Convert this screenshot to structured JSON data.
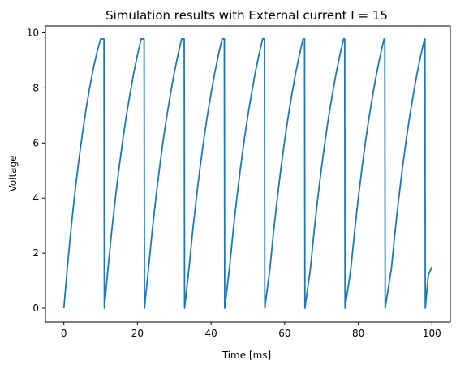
{
  "chart_data": {
    "type": "line",
    "title": "Simulation results with External current I = 15",
    "xlabel": "Time [ms]",
    "ylabel": "Voltage",
    "xlim": [
      -5,
      105
    ],
    "ylim": [
      -0.5,
      10.25
    ],
    "xticks": [
      0,
      20,
      40,
      60,
      80,
      100
    ],
    "yticks": [
      0,
      2,
      4,
      6,
      8,
      10
    ],
    "grid": false,
    "legend": "none",
    "series": [
      {
        "color": "#1f77b4",
        "x": [
          0,
          1,
          2,
          3,
          4,
          5,
          6,
          7,
          8,
          9,
          10,
          10.9,
          11.0,
          12,
          13,
          14,
          15,
          16,
          17,
          18,
          19,
          20,
          21.0,
          21.8,
          21.9,
          23,
          24,
          25,
          26,
          27,
          28,
          29,
          30,
          31,
          32.0,
          32.7,
          32.8,
          34,
          35,
          36,
          37,
          38,
          39,
          40,
          41,
          42,
          43.0,
          43.6,
          43.7,
          45,
          46,
          47,
          48,
          49,
          50,
          51,
          52,
          53,
          54.0,
          54.5,
          54.6,
          56,
          57,
          58,
          59,
          60,
          61,
          62,
          63,
          64,
          65.0,
          65.4,
          65.5,
          67,
          68,
          69,
          70,
          71,
          72,
          73,
          74,
          75,
          76.0,
          76.3,
          76.4,
          78,
          79,
          80,
          81,
          82,
          83,
          84,
          85,
          86,
          87.0,
          87.2,
          87.3,
          89,
          90,
          91,
          92,
          93,
          94,
          95,
          96,
          97,
          98.0,
          98.1,
          98.2,
          99,
          100
        ],
        "y": [
          0,
          1.55,
          2.95,
          4.2,
          5.3,
          6.3,
          7.2,
          8.0,
          8.7,
          9.3,
          9.78,
          9.78,
          0,
          1.45,
          2.8,
          4.0,
          5.1,
          6.1,
          7.0,
          7.8,
          8.55,
          9.2,
          9.78,
          9.78,
          0,
          1.45,
          2.8,
          4.0,
          5.1,
          6.1,
          7.0,
          7.8,
          8.55,
          9.2,
          9.78,
          9.78,
          0,
          1.45,
          2.8,
          4.0,
          5.1,
          6.1,
          7.0,
          7.8,
          8.55,
          9.2,
          9.78,
          9.78,
          0,
          1.45,
          2.8,
          4.0,
          5.1,
          6.1,
          7.0,
          7.8,
          8.55,
          9.2,
          9.78,
          9.78,
          0,
          1.45,
          2.8,
          4.0,
          5.1,
          6.1,
          7.0,
          7.8,
          8.55,
          9.2,
          9.78,
          9.78,
          0,
          1.45,
          2.8,
          4.0,
          5.1,
          6.1,
          7.0,
          7.8,
          8.55,
          9.2,
          9.78,
          9.78,
          0,
          1.45,
          2.8,
          4.0,
          5.1,
          6.1,
          7.0,
          7.8,
          8.55,
          9.2,
          9.78,
          9.78,
          0,
          1.45,
          2.8,
          4.0,
          5.1,
          6.1,
          7.0,
          7.8,
          8.55,
          9.2,
          9.78,
          9.78,
          0,
          1.2,
          1.5
        ]
      }
    ]
  }
}
